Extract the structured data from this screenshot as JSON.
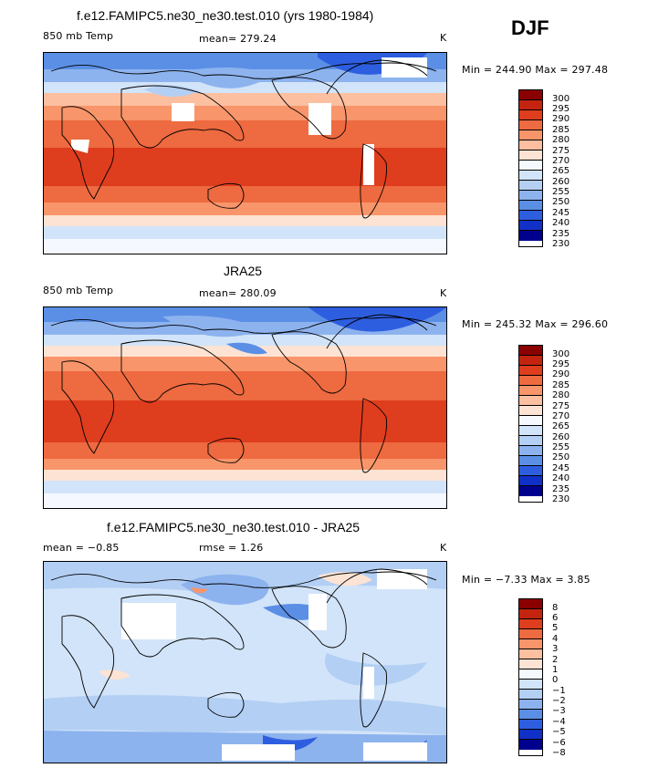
{
  "season": "DJF",
  "panels": [
    {
      "title": "f.e12.FAMIPC5.ne30_ne30.test.010 (yrs 1980-1984)",
      "left_label": "850 mb Temp",
      "center_label": "mean= 279.24",
      "unit": "K",
      "minmax": "Min = 244.90 Max = 297.48",
      "legend_labels": [
        "300",
        "295",
        "290",
        "285",
        "280",
        "275",
        "270",
        "265",
        "260",
        "255",
        "250",
        "245",
        "240",
        "235",
        "230"
      ]
    },
    {
      "title": "JRA25",
      "left_label": "850 mb Temp",
      "center_label": "mean= 280.09",
      "unit": "K",
      "minmax": "Min = 245.32 Max = 296.60",
      "legend_labels": [
        "300",
        "295",
        "290",
        "285",
        "280",
        "275",
        "270",
        "265",
        "260",
        "255",
        "250",
        "245",
        "240",
        "235",
        "230"
      ]
    },
    {
      "title": "f.e12.FAMIPC5.ne30_ne30.test.010 - JRA25",
      "left_label": "mean =  −0.85",
      "center_label": "rmse =   1.26",
      "unit": "K",
      "minmax": "Min =  −7.33 Max =   3.85",
      "legend_labels": [
        "8",
        "6",
        "5",
        "4",
        "3",
        "2",
        "1",
        "0",
        "−1",
        "−2",
        "−3",
        "−4",
        "−5",
        "−6",
        "−8"
      ]
    }
  ],
  "colors": {
    "scale": [
      "#8b0000",
      "#c4240f",
      "#de3d1e",
      "#ee6a40",
      "#f8956a",
      "#fcbfa0",
      "#fde3d3",
      "#f5f9ff",
      "#d2e4f9",
      "#b3cff4",
      "#8db3ee",
      "#5b8fe6",
      "#2e5ee0",
      "#1030c8",
      "#00008f"
    ],
    "land_missing": "#ffffff",
    "coast": "#000000"
  }
}
